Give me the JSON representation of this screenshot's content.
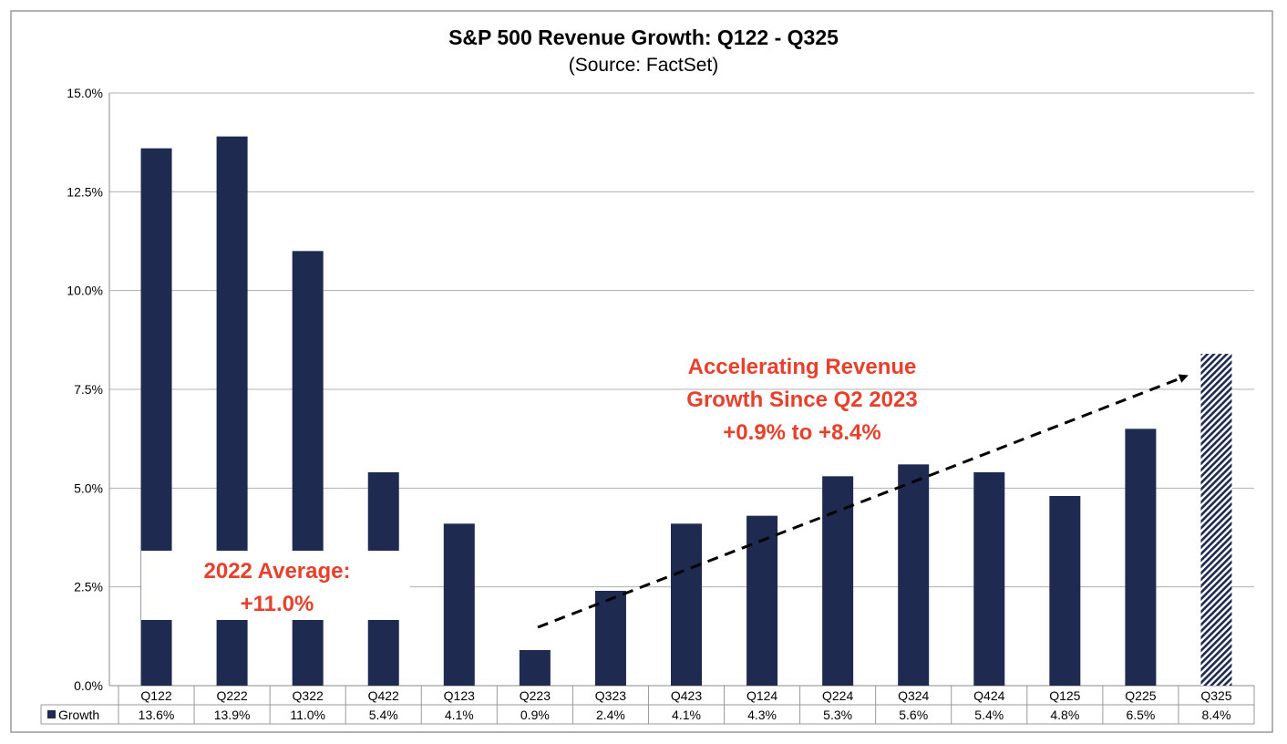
{
  "chart_data": {
    "type": "bar",
    "title": "S&P 500 Revenue Growth: Q122 - Q325",
    "subtitle": "(Source: FactSet)",
    "categories": [
      "Q122",
      "Q222",
      "Q322",
      "Q422",
      "Q123",
      "Q223",
      "Q323",
      "Q423",
      "Q124",
      "Q224",
      "Q324",
      "Q424",
      "Q125",
      "Q225",
      "Q325"
    ],
    "series": [
      {
        "name": "Growth",
        "values": [
          13.6,
          13.9,
          11.0,
          5.4,
          4.1,
          0.9,
          2.4,
          4.1,
          4.3,
          5.3,
          5.6,
          5.4,
          4.8,
          6.5,
          8.4
        ]
      }
    ],
    "value_labels": [
      "13.6%",
      "13.9%",
      "11.0%",
      "5.4%",
      "4.1%",
      "0.9%",
      "2.4%",
      "4.1%",
      "4.3%",
      "5.3%",
      "5.6%",
      "5.4%",
      "4.8%",
      "6.5%",
      "8.4%"
    ],
    "estimated_last_bar": true,
    "ylim": [
      0,
      15
    ],
    "yticks": [
      "0.0%",
      "2.5%",
      "5.0%",
      "7.5%",
      "10.0%",
      "12.5%",
      "15.0%"
    ],
    "grid": true,
    "legend": "data-table",
    "colors": {
      "bar": "#1f2a50",
      "annotation": "#e8402a",
      "grid": "#b0b0b0"
    },
    "annotations": {
      "avg_line1": "2022 Average:",
      "avg_line2": "+11.0%",
      "trend_line1": "Accelerating Revenue",
      "trend_line2": "Growth Since Q2 2023",
      "trend_line3": "+0.9% to +8.4%"
    }
  }
}
